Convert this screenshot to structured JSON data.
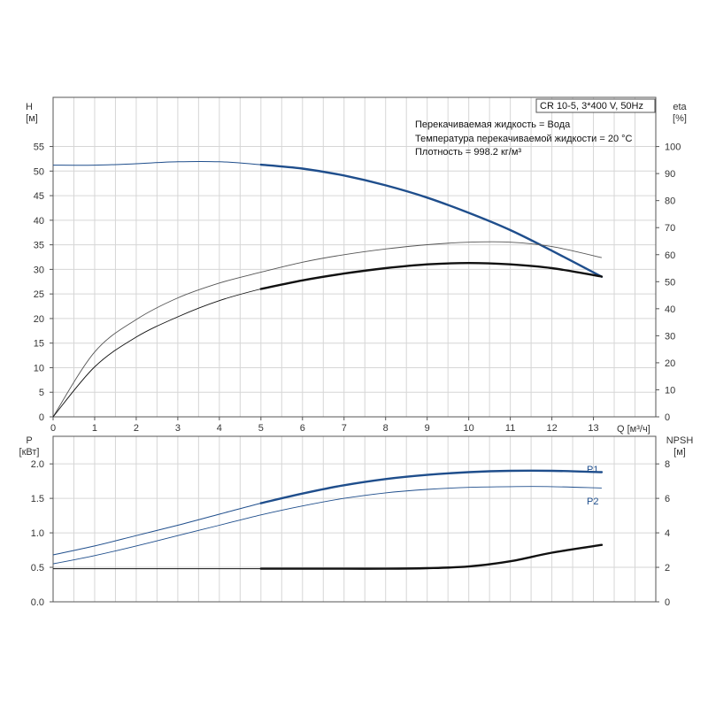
{
  "colors": {
    "grid": "#d6d6d6",
    "frame": "#555555",
    "blue": "#1f4e8c",
    "black": "#111111",
    "thin": "#555555"
  },
  "chart_data": [
    {
      "type": "line",
      "x_axis": {
        "label_html": "Q [м³/ч]",
        "label": "Q [м³/ч]",
        "ticks": [
          0,
          1,
          2,
          3,
          4,
          5,
          6,
          7,
          8,
          9,
          10,
          11,
          12,
          13
        ],
        "range": [
          0,
          14.5
        ]
      },
      "y_left": {
        "label": "H",
        "unit": "[м]",
        "ticks": [
          0,
          5,
          10,
          15,
          20,
          25,
          30,
          35,
          40,
          45,
          50,
          55
        ],
        "range": [
          0,
          65
        ]
      },
      "y_right": {
        "label": "eta",
        "unit": "[%]",
        "ticks": [
          0,
          10,
          20,
          30,
          40,
          50,
          60,
          70,
          80,
          90,
          100
        ],
        "range": [
          0,
          118.2
        ]
      },
      "info_box": "CR 10-5, 3*400 V, 50Hz",
      "info_lines": [
        "Перекачиваемая жидкость = Вода",
        "Температура перекачиваемой жидкости = 20 °C",
        "Плотность = 998.2 кг/м³"
      ],
      "series": [
        {
          "key": "H",
          "axis": "left",
          "x": [
            0,
            1,
            2,
            3,
            4,
            5,
            6,
            7,
            8,
            9,
            10,
            11,
            12,
            13.2
          ],
          "y": [
            51.2,
            51.2,
            51.5,
            51.9,
            51.9,
            51.3,
            50.5,
            49.1,
            47.1,
            44.6,
            41.5,
            38.0,
            33.8,
            28.5
          ],
          "bold_from": 5
        },
        {
          "key": "eta_thin",
          "axis": "right",
          "x": [
            0,
            1,
            2,
            3,
            4,
            5,
            6,
            7,
            8,
            9,
            10,
            11,
            12,
            13.2
          ],
          "y": [
            0,
            24,
            36,
            44,
            49.5,
            53.5,
            57.2,
            60,
            62.1,
            63.7,
            64.6,
            64.6,
            63,
            58.9
          ]
        },
        {
          "key": "eta",
          "axis": "right",
          "x": [
            0,
            1,
            2,
            3,
            4,
            5,
            6,
            7,
            8,
            9,
            10,
            11,
            12,
            13.2
          ],
          "y": [
            0,
            18.5,
            29.5,
            37,
            43,
            47.3,
            50.5,
            53,
            55,
            56.4,
            56.9,
            56.4,
            55,
            51.9
          ],
          "bold_from": 5
        }
      ]
    },
    {
      "type": "line",
      "x_axis": {
        "range": [
          0,
          14.5
        ]
      },
      "y_left": {
        "label": "P",
        "unit": "[кВт]",
        "ticks": [
          "0.0",
          "0.5",
          "1.0",
          "1.5",
          "2.0"
        ],
        "tick_values": [
          0,
          0.5,
          1.0,
          1.5,
          2.0
        ],
        "range": [
          0,
          2.4
        ]
      },
      "y_right": {
        "label": "NPSH",
        "unit": "[м]",
        "ticks": [
          "0",
          "2",
          "4",
          "6",
          "8"
        ],
        "tick_values": [
          0,
          2,
          4,
          6,
          8
        ],
        "range": [
          0,
          9.6
        ]
      },
      "series": [
        {
          "key": "P1",
          "name": "P1",
          "axis": "left",
          "x": [
            0,
            1,
            2,
            3,
            4,
            5,
            6,
            7,
            8,
            9,
            10,
            11,
            12,
            13.2
          ],
          "y": [
            0.68,
            0.81,
            0.96,
            1.11,
            1.27,
            1.43,
            1.57,
            1.69,
            1.78,
            1.84,
            1.88,
            1.9,
            1.9,
            1.88
          ],
          "bold_from": 5
        },
        {
          "key": "P2",
          "name": "P2",
          "axis": "left",
          "x": [
            0,
            1,
            2,
            3,
            4,
            5,
            6,
            7,
            8,
            9,
            10,
            11,
            12,
            13.2
          ],
          "y": [
            0.55,
            0.67,
            0.81,
            0.96,
            1.11,
            1.26,
            1.39,
            1.5,
            1.58,
            1.63,
            1.66,
            1.67,
            1.67,
            1.65
          ]
        },
        {
          "key": "NPSH",
          "axis": "right",
          "x": [
            0,
            1,
            2,
            3,
            4,
            5,
            6,
            7,
            8,
            9,
            10,
            11,
            12,
            13.2
          ],
          "y": [
            1.92,
            1.92,
            1.92,
            1.92,
            1.92,
            1.92,
            1.92,
            1.92,
            1.92,
            1.95,
            2.05,
            2.35,
            2.85,
            3.3
          ],
          "bold_from": 5
        }
      ]
    }
  ]
}
